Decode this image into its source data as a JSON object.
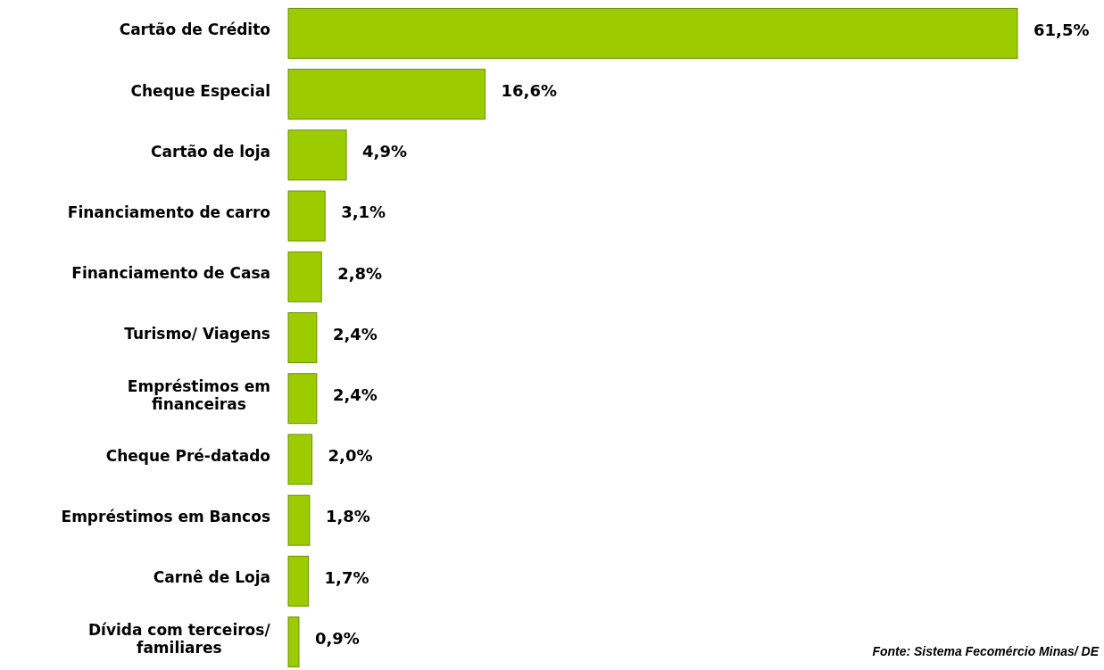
{
  "chart_data": {
    "type": "bar",
    "orientation": "horizontal",
    "value_labels": [
      "61,5%",
      "16,6%",
      "4,9%",
      "3,1%",
      "2,8%",
      "2,4%",
      "2,4%",
      "2,0%",
      "1,8%",
      "1,7%",
      "0,9%"
    ],
    "categories": [
      "Cartão de Crédito",
      "Cheque Especial",
      "Cartão de loja",
      "Financiamento de carro",
      "Financiamento de Casa",
      "Turismo/ Viagens",
      "Empréstimos em financeiras",
      "Cheque Pré-datado",
      "Empréstimos em Bancos",
      "Carnê de Loja",
      "Dívida com terceiros/ familiares"
    ],
    "values": [
      61.5,
      16.6,
      4.9,
      3.1,
      2.8,
      2.4,
      2.4,
      2.0,
      1.8,
      1.7,
      0.9
    ],
    "color": "#9ccc00",
    "annotations": [
      "Fonte:  Sistema Fecomércio Minas/ DE"
    ]
  }
}
